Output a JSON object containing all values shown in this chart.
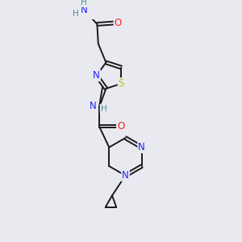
{
  "background_color": "#e8eaf0",
  "bond_color": "#1a1a1a",
  "atom_colors": {
    "N": "#2020ff",
    "O": "#ff2020",
    "S": "#ccbb00",
    "H": "#4a9090",
    "C": "#1a1a1a"
  },
  "lw": 1.4,
  "fs": 8.5,
  "fsh": 7.5
}
